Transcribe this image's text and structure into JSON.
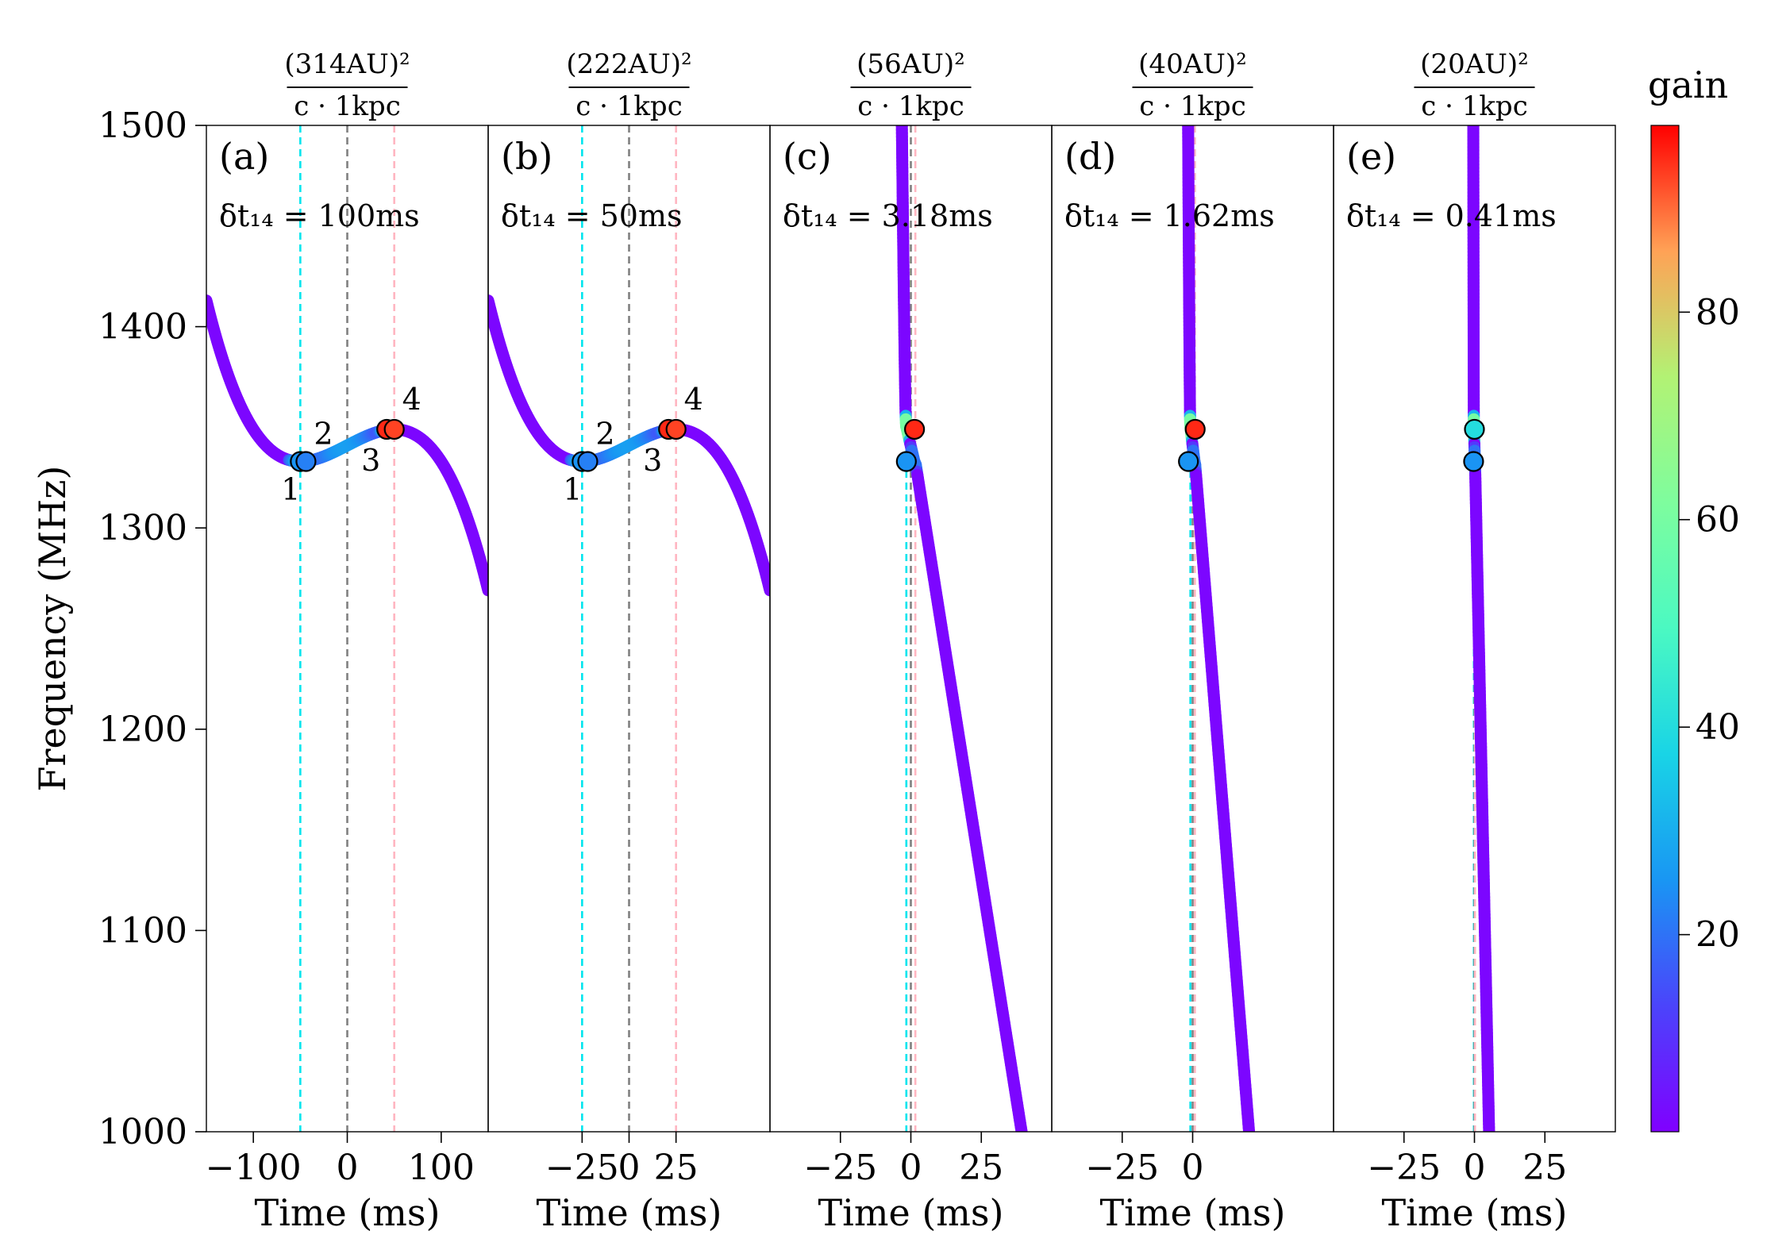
{
  "chart_data": {
    "type": "line",
    "ylabel": "Frequency (MHz)",
    "xlabel": "Time (ms)",
    "ylim": [
      1000,
      1500
    ],
    "y_ticks": [
      "1000",
      "1100",
      "1200",
      "1300",
      "1400",
      "1500"
    ],
    "colorbar": {
      "label": "gain",
      "range": [
        1,
        98
      ],
      "ticks": [
        "20",
        "40",
        "60",
        "80"
      ],
      "colormap": "rainbow"
    },
    "panels": [
      {
        "id": "a",
        "label": "(a)",
        "dt_label": "δt₁₄ = 100ms",
        "header_num": "(314AU)²",
        "header_den": "c · 1kpc",
        "xlim": [
          -150,
          150
        ],
        "x_ticks": [
          {
            "v": -100,
            "t": "−100"
          },
          {
            "v": 0,
            "t": "0"
          },
          {
            "v": 100,
            "t": "100"
          }
        ],
        "t0": -50,
        "f0": 1333,
        "dt14": 100,
        "df14": 16,
        "vlines": [
          {
            "x": -50,
            "color": "#00e5ee"
          },
          {
            "x": 0,
            "color": "#808080"
          },
          {
            "x": 50,
            "color": "#ffb6c1"
          }
        ],
        "points": [
          {
            "n": "1",
            "t": -50,
            "f": 1333,
            "gain": 25
          },
          {
            "n": "2",
            "t": -44,
            "f": 1333,
            "gain": 22
          },
          {
            "n": "3",
            "t": 42,
            "f": 1349,
            "gain": 95
          },
          {
            "n": "4",
            "t": 50,
            "f": 1349,
            "gain": 93
          }
        ]
      },
      {
        "id": "b",
        "label": "(b)",
        "dt_label": "δt₁₄ = 50ms",
        "header_num": "(222AU)²",
        "header_den": "c · 1kpc",
        "xlim": [
          -75,
          75
        ],
        "x_ticks": [
          {
            "v": -25,
            "t": "−25"
          },
          {
            "v": 0,
            "t": "0"
          },
          {
            "v": 25,
            "t": "25"
          }
        ],
        "t0": -25,
        "f0": 1333,
        "dt14": 50,
        "df14": 16,
        "vlines": [
          {
            "x": -25,
            "color": "#00e5ee"
          },
          {
            "x": 0,
            "color": "#808080"
          },
          {
            "x": 25,
            "color": "#ffb6c1"
          }
        ],
        "points": [
          {
            "n": "1",
            "t": -25,
            "f": 1333,
            "gain": 25
          },
          {
            "n": "2",
            "t": -22,
            "f": 1333,
            "gain": 22
          },
          {
            "n": "3",
            "t": 21,
            "f": 1349,
            "gain": 95
          },
          {
            "n": "4",
            "t": 25,
            "f": 1349,
            "gain": 93
          }
        ]
      },
      {
        "id": "c",
        "label": "(c)",
        "dt_label": "δt₁₄ = 3.18ms",
        "header_num": "(56AU)²",
        "header_den": "c · 1kpc",
        "xlim": [
          -50,
          50
        ],
        "x_ticks": [
          {
            "v": -25,
            "t": "−25"
          },
          {
            "v": 0,
            "t": "0"
          },
          {
            "v": 25,
            "t": "25"
          }
        ],
        "t0": -1.6,
        "f0": 1333,
        "dt14": 3.18,
        "df14": 16,
        "slope": 0.0515,
        "vlines": [
          {
            "x": -1.6,
            "color": "#00e5ee"
          },
          {
            "x": 0,
            "color": "#808080"
          },
          {
            "x": 1.6,
            "color": "#ffb6c1"
          }
        ],
        "points": [
          {
            "n": "",
            "t": -1.6,
            "f": 1333,
            "gain": 25
          },
          {
            "n": "",
            "t": 1.3,
            "f": 1349,
            "gain": 95
          }
        ]
      },
      {
        "id": "d",
        "label": "(d)",
        "dt_label": "δt₁₄ = 1.62ms",
        "header_num": "(40AU)²",
        "header_den": "c · 1kpc",
        "xlim": [
          -50,
          50
        ],
        "x_ticks": [
          {
            "v": -25,
            "t": "−25"
          },
          {
            "v": 0,
            "t": "0"
          }
        ],
        "t0": -0.8,
        "f0": 1333,
        "dt14": 1.62,
        "df14": 16,
        "slope": 0.0262,
        "vlines": [
          {
            "x": -0.8,
            "color": "#00e5ee"
          },
          {
            "x": 0,
            "color": "#808080"
          },
          {
            "x": 0.8,
            "color": "#ffb6c1"
          }
        ],
        "points": [
          {
            "n": "",
            "t": -1.5,
            "f": 1333,
            "gain": 25
          },
          {
            "n": "",
            "t": 0.9,
            "f": 1349,
            "gain": 95
          }
        ]
      },
      {
        "id": "e",
        "label": "(e)",
        "dt_label": "δt₁₄ = 0.41ms",
        "header_num": "(20AU)²",
        "header_den": "c · 1kpc",
        "xlim": [
          -50,
          50
        ],
        "x_ticks": [
          {
            "v": -25,
            "t": "−25"
          },
          {
            "v": 0,
            "t": "0"
          },
          {
            "v": 25,
            "t": "25"
          }
        ],
        "t0": -0.2,
        "f0": 1333,
        "dt14": 0.41,
        "df14": 16,
        "slope": 0.0068,
        "vlines": [
          {
            "x": -0.2,
            "color": "#00e5ee"
          },
          {
            "x": 0,
            "color": "#808080"
          },
          {
            "x": 0.2,
            "color": "#ffb6c1"
          }
        ],
        "points": [
          {
            "n": "",
            "t": 0,
            "f": 1349,
            "gain": 40
          },
          {
            "n": "",
            "t": -0.3,
            "f": 1333,
            "gain": 25
          }
        ]
      }
    ]
  }
}
